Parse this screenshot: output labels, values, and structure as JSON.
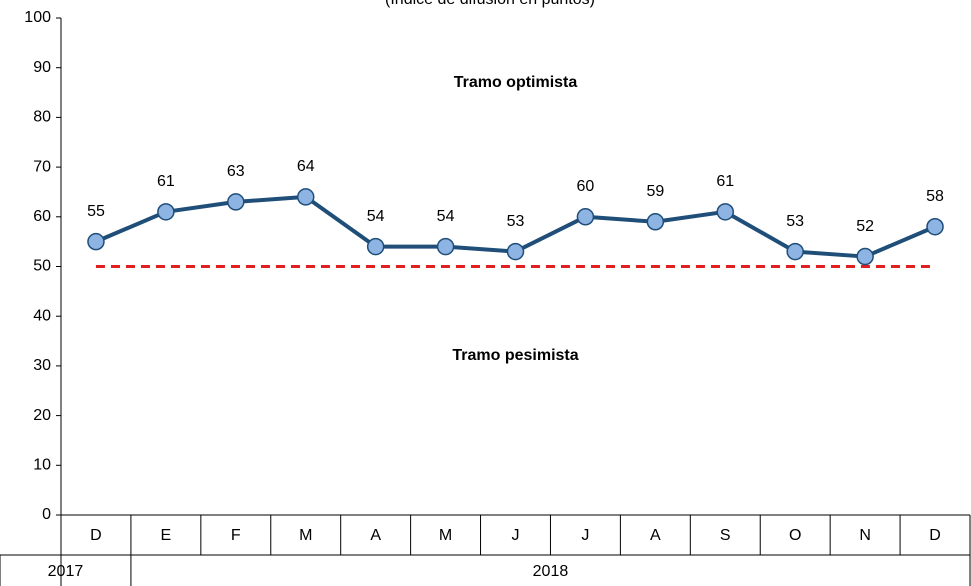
{
  "chart_data": {
    "type": "line",
    "subtitle": "(Índice de difusión en puntos)",
    "categories": [
      "D",
      "E",
      "F",
      "M",
      "A",
      "M",
      "J",
      "J",
      "A",
      "S",
      "O",
      "N",
      "D"
    ],
    "x_groups": [
      {
        "label": "2017",
        "from": 0,
        "to": 0
      },
      {
        "label": "2018",
        "from": 1,
        "to": 12
      }
    ],
    "series": [
      {
        "name": "Índice",
        "color": "#1f4e79",
        "marker_color": "#8eb4e3",
        "values": [
          55,
          61,
          63,
          64,
          54,
          54,
          53,
          60,
          59,
          61,
          53,
          52,
          58
        ]
      }
    ],
    "reference_line": {
      "value": 50,
      "color": "#e02020"
    },
    "annotations": [
      {
        "text": "Tramo optimista",
        "y": 87
      },
      {
        "text": "Tramo pesimista",
        "y": 32
      }
    ],
    "ylim": [
      0,
      100
    ],
    "yticks": [
      0,
      10,
      20,
      30,
      40,
      50,
      60,
      70,
      80,
      90,
      100
    ]
  }
}
